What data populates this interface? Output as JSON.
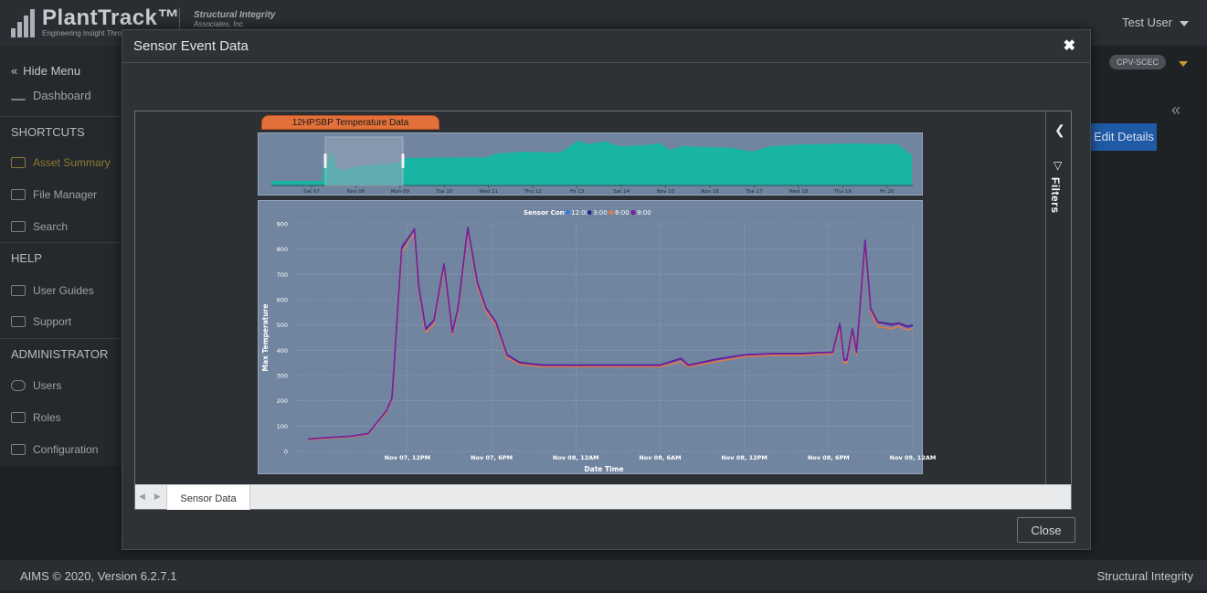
{
  "app": {
    "brand_name": "PlantTrack™",
    "brand_tagline": "Engineering Insight Thro",
    "partner_name": "Structural Integrity",
    "partner_sub": "Associates, Inc.",
    "user_label": "Test User"
  },
  "sidebar": {
    "hide_menu": "Hide Menu",
    "dashboard": "Dashboard",
    "sections": [
      {
        "heading": "SHORTCUTS",
        "items": [
          "Asset Summary",
          "File Manager",
          "Search"
        ]
      },
      {
        "heading": "HELP",
        "items": [
          "User Guides",
          "Support"
        ]
      },
      {
        "heading": "ADMINISTRATOR",
        "items": [
          "Users",
          "Roles",
          "Configuration"
        ]
      }
    ]
  },
  "background": {
    "badge": "CPV-SCEC",
    "edit_details": "Edit Details"
  },
  "footer": {
    "left": "AIMS © 2020, Version 6.2.7.1",
    "right": "Structural Integrity"
  },
  "modal": {
    "title": "Sensor Event Data",
    "close_label": "Close",
    "filters_label": "Filters",
    "tab_label": "Sensor Data",
    "chart_tab": "12HPSBP Temperature Data"
  },
  "colors": {
    "accent_orange": "#e2703a",
    "navigator_fill": "#13b7a4",
    "series_12": "#2f7fd6",
    "series_3": "#2b2a8c",
    "series_6": "#e07a4a",
    "series_9": "#7a1fa0"
  },
  "chart_data": {
    "type": "line",
    "xlabel": "Date Time",
    "ylabel": "Max Temperature",
    "ylim": [
      0,
      900
    ],
    "yticks": [
      0,
      100,
      200,
      300,
      400,
      500,
      600,
      700,
      800,
      900
    ],
    "xlim": [
      "Nov 07, 4AM",
      "Nov 09, 12AM"
    ],
    "xticks": [
      "Nov 07, 12PM",
      "Nov 07, 6PM",
      "Nov 08, 12AM",
      "Nov 08, 6AM",
      "Nov 08, 12PM",
      "Nov 08, 6PM",
      "Nov 09, 12AM"
    ],
    "grid": true,
    "legend": {
      "title": "Sensor Conv",
      "placement": "top-center"
    },
    "x_hours": [
      4.9,
      6,
      8,
      9.2,
      10.5,
      10.9,
      11.6,
      12.5,
      12.8,
      13.3,
      13.9,
      14.6,
      15.2,
      15.6,
      16.3,
      17,
      17.6,
      18.3,
      19.1,
      20,
      20.8,
      21.7,
      22.4,
      23,
      24,
      26,
      28,
      30,
      31.5,
      32,
      32.5,
      34,
      36,
      38,
      40,
      42,
      42.3,
      42.8,
      43.1,
      43.3,
      43.7,
      44,
      44.6,
      45,
      45.5,
      46.5,
      47,
      47.6,
      48
    ],
    "series": [
      {
        "name": "12:00",
        "values": [
          48,
          53,
          60,
          70,
          160,
          210,
          800,
          875,
          650,
          480,
          515,
          740,
          470,
          560,
          880,
          660,
          565,
          510,
          380,
          350,
          345,
          340,
          340,
          340,
          340,
          340,
          340,
          340,
          365,
          340,
          345,
          362,
          380,
          385,
          385,
          390,
          390,
          500,
          360,
          360,
          480,
          390,
          830,
          560,
          510,
          500,
          505,
          490,
          495
        ]
      },
      {
        "name": "3:00",
        "values": [
          48,
          53,
          60,
          70,
          160,
          210,
          805,
          880,
          655,
          485,
          520,
          740,
          472,
          565,
          885,
          665,
          568,
          512,
          382,
          352,
          347,
          342,
          342,
          342,
          342,
          342,
          342,
          342,
          368,
          342,
          347,
          365,
          382,
          387,
          387,
          392,
          392,
          505,
          362,
          362,
          485,
          392,
          835,
          565,
          512,
          503,
          508,
          495,
          500
        ]
      },
      {
        "name": "6:00",
        "values": [
          46,
          51,
          58,
          68,
          155,
          205,
          790,
          865,
          640,
          470,
          505,
          730,
          462,
          550,
          870,
          650,
          555,
          500,
          370,
          345,
          340,
          335,
          335,
          335,
          335,
          335,
          335,
          335,
          355,
          335,
          340,
          355,
          375,
          380,
          380,
          385,
          385,
          490,
          350,
          350,
          470,
          380,
          820,
          550,
          495,
          485,
          495,
          480,
          485
        ]
      },
      {
        "name": "9:00",
        "values": [
          48,
          53,
          60,
          70,
          160,
          210,
          810,
          878,
          652,
          482,
          518,
          742,
          470,
          562,
          882,
          662,
          566,
          510,
          380,
          350,
          345,
          340,
          340,
          340,
          340,
          340,
          340,
          340,
          366,
          340,
          345,
          363,
          381,
          386,
          386,
          391,
          391,
          502,
          361,
          361,
          482,
          391,
          832,
          562,
          510,
          500,
          506,
          492,
          497
        ]
      }
    ],
    "navigator": {
      "xticks": [
        "Sat 07",
        "Nov 08",
        "Mon 09",
        "Tue 10",
        "Wed 11",
        "Thu 12",
        "Fri 13",
        "Sat 14",
        "Nov 15",
        "Nov 16",
        "Tue 17",
        "Wed 18",
        "Thu 19",
        "Fri 20"
      ],
      "selected_range": [
        "Nov 07, 4AM",
        "Nov 09, 12AM"
      ]
    }
  }
}
